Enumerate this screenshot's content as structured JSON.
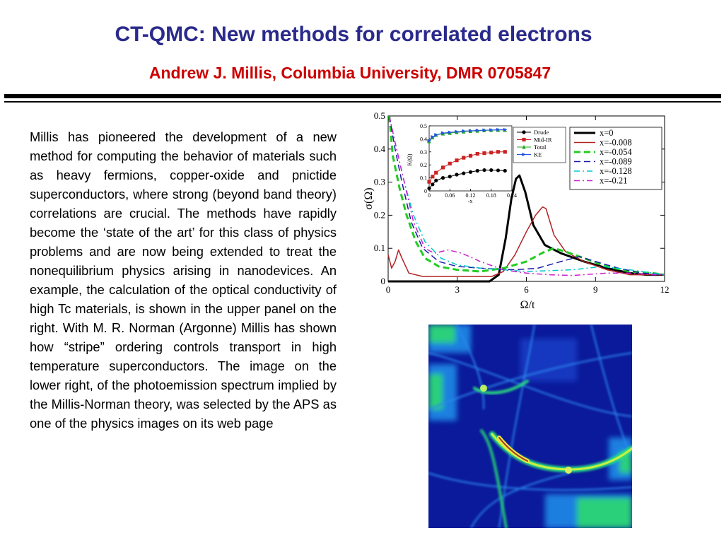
{
  "slide": {
    "title": "CT-QMC: New methods for correlated electrons",
    "subtitle": "Andrew J. Millis, Columbia University, DMR 0705847",
    "body": "Millis has pioneered the development of a new method for computing the behavior of materials such as heavy fermions, copper-oxide and pnictide superconductors, where strong (beyond band theory) correlations are crucial. The methods have rapidly become the ‘state of the art’ for this class of physics problems and are now being extended to treat the nonequilibrium physics arising in nanodevices. An example, the calculation of the optical conductivity of high Tc materials, is shown in the upper panel on the right. With M. R. Norman (Argonne) Millis has shown how “stripe” ordering controls transport in high temperature superconductors. The image on the lower right, of the photoemission spectrum implied by the Millis-Norman theory, was selected by the APS as one of the physics images on its web page"
  },
  "colors": {
    "title": "#2a2a8c",
    "subtitle": "#cc0000"
  },
  "chart_data": [
    {
      "type": "line",
      "xlabel": "Ω/t",
      "ylabel": "σ(Ω)",
      "xlim": [
        0,
        12
      ],
      "ylim": [
        0,
        0.5
      ],
      "xticks": [
        "0",
        "3",
        "6",
        "9",
        "12"
      ],
      "yticks": [
        "0",
        "0.1",
        "0.2",
        "0.3",
        "0.4",
        "0.5"
      ],
      "legend_position": "top-right",
      "series": [
        {
          "name": "x=0",
          "color": "#000000",
          "style": "solid",
          "width": 3,
          "points": [
            [
              0,
              0
            ],
            [
              4.4,
              0
            ],
            [
              4.8,
              0.02
            ],
            [
              5.1,
              0.13
            ],
            [
              5.35,
              0.25
            ],
            [
              5.55,
              0.31
            ],
            [
              5.7,
              0.32
            ],
            [
              5.95,
              0.27
            ],
            [
              6.3,
              0.17
            ],
            [
              6.8,
              0.11
            ],
            [
              7.5,
              0.085
            ],
            [
              8.5,
              0.06
            ],
            [
              9.5,
              0.04
            ],
            [
              10.5,
              0.025
            ],
            [
              11.2,
              0.02
            ],
            [
              12,
              0.02
            ]
          ]
        },
        {
          "name": "x=-0.008",
          "color": "#b22222",
          "style": "solid",
          "width": 1.5,
          "points": [
            [
              0,
              0.08
            ],
            [
              0.15,
              0.04
            ],
            [
              0.3,
              0.06
            ],
            [
              0.45,
              0.095
            ],
            [
              0.6,
              0.07
            ],
            [
              0.9,
              0.025
            ],
            [
              1.5,
              0.015
            ],
            [
              3,
              0.015
            ],
            [
              4.5,
              0.015
            ],
            [
              5,
              0.03
            ],
            [
              5.5,
              0.08
            ],
            [
              6,
              0.15
            ],
            [
              6.4,
              0.2
            ],
            [
              6.7,
              0.225
            ],
            [
              6.85,
              0.22
            ],
            [
              7.2,
              0.14
            ],
            [
              7.7,
              0.09
            ],
            [
              8.5,
              0.06
            ],
            [
              9.5,
              0.035
            ],
            [
              10.5,
              0.02
            ],
            [
              11.5,
              0.02
            ],
            [
              12,
              0.02
            ]
          ]
        },
        {
          "name": "x=-0.054",
          "color": "#22cc22",
          "style": "dashed",
          "width": 3,
          "points": [
            [
              0.05,
              0.5
            ],
            [
              0.2,
              0.38
            ],
            [
              0.5,
              0.28
            ],
            [
              0.8,
              0.2
            ],
            [
              1.2,
              0.12
            ],
            [
              1.6,
              0.07
            ],
            [
              2.2,
              0.045
            ],
            [
              3,
              0.035
            ],
            [
              4,
              0.03
            ],
            [
              5,
              0.04
            ],
            [
              6,
              0.06
            ],
            [
              6.8,
              0.09
            ],
            [
              7.2,
              0.1
            ],
            [
              7.7,
              0.09
            ],
            [
              8.5,
              0.07
            ],
            [
              9.5,
              0.045
            ],
            [
              10.5,
              0.03
            ],
            [
              11.5,
              0.025
            ],
            [
              12,
              0.02
            ]
          ]
        },
        {
          "name": "x=-0.089",
          "color": "#1a1aa8",
          "style": "dashed",
          "width": 1.5,
          "points": [
            [
              0.05,
              0.5
            ],
            [
              0.3,
              0.4
            ],
            [
              0.6,
              0.3
            ],
            [
              1,
              0.18
            ],
            [
              1.5,
              0.1
            ],
            [
              2.2,
              0.06
            ],
            [
              3,
              0.045
            ],
            [
              4,
              0.04
            ],
            [
              5.5,
              0.035
            ],
            [
              6.5,
              0.04
            ],
            [
              7.5,
              0.06
            ],
            [
              8.3,
              0.075
            ],
            [
              9,
              0.06
            ],
            [
              10,
              0.04
            ],
            [
              11,
              0.025
            ],
            [
              12,
              0.02
            ]
          ]
        },
        {
          "name": "x=-0.128",
          "color": "#00c8c8",
          "style": "dashdot",
          "width": 1.5,
          "points": [
            [
              0.05,
              0.5
            ],
            [
              0.3,
              0.42
            ],
            [
              0.7,
              0.3
            ],
            [
              1.1,
              0.2
            ],
            [
              1.6,
              0.12
            ],
            [
              2.3,
              0.07
            ],
            [
              3,
              0.05
            ],
            [
              4,
              0.04
            ],
            [
              6,
              0.03
            ],
            [
              8,
              0.035
            ],
            [
              9.3,
              0.045
            ],
            [
              10.5,
              0.035
            ],
            [
              11.5,
              0.025
            ],
            [
              12,
              0.02
            ]
          ]
        },
        {
          "name": "x=-0.21",
          "color": "#cc22cc",
          "style": "dashdot",
          "width": 1.5,
          "points": [
            [
              0.05,
              0.5
            ],
            [
              0.3,
              0.42
            ],
            [
              0.7,
              0.3
            ],
            [
              1.1,
              0.18
            ],
            [
              1.6,
              0.1
            ],
            [
              2,
              0.085
            ],
            [
              2.6,
              0.095
            ],
            [
              3.2,
              0.085
            ],
            [
              4,
              0.06
            ],
            [
              5,
              0.035
            ],
            [
              6,
              0.025
            ],
            [
              7,
              0.02
            ],
            [
              8,
              0.018
            ],
            [
              9.5,
              0.025
            ],
            [
              10.5,
              0.025
            ],
            [
              11.5,
              0.02
            ],
            [
              12,
              0.02
            ]
          ]
        }
      ],
      "inset": {
        "type": "line",
        "xlabel": "-x",
        "ylabel": "K(Ω)",
        "xlim": [
          0,
          0.24
        ],
        "ylim": [
          0,
          0.5
        ],
        "xticks": [
          "0",
          "0.06",
          "0.12",
          "0.18",
          "0.24"
        ],
        "yticks": [
          "0",
          "0.1",
          "0.2",
          "0.3",
          "0.4",
          "0.5"
        ],
        "series": [
          {
            "name": "Drude",
            "color": "#000000",
            "marker": "circle",
            "x": [
              0,
              0.01,
              0.02,
              0.04,
              0.06,
              0.08,
              0.1,
              0.12,
              0.14,
              0.16,
              0.18,
              0.2,
              0.22
            ],
            "y": [
              0.02,
              0.05,
              0.08,
              0.1,
              0.11,
              0.125,
              0.135,
              0.145,
              0.155,
              0.16,
              0.16,
              0.158,
              0.155
            ]
          },
          {
            "name": "Mid-IR",
            "color": "#cc2222",
            "marker": "square",
            "x": [
              0,
              0.01,
              0.02,
              0.04,
              0.06,
              0.08,
              0.1,
              0.12,
              0.14,
              0.16,
              0.18,
              0.2,
              0.22
            ],
            "y": [
              0.07,
              0.11,
              0.14,
              0.18,
              0.21,
              0.235,
              0.255,
              0.27,
              0.285,
              0.29,
              0.295,
              0.3,
              0.3
            ]
          },
          {
            "name": "Total",
            "color": "#22aa22",
            "marker": "triangle-up",
            "x": [
              0,
              0.01,
              0.02,
              0.04,
              0.06,
              0.08,
              0.1,
              0.12,
              0.14,
              0.16,
              0.18,
              0.2,
              0.22
            ],
            "y": [
              0.38,
              0.41,
              0.43,
              0.44,
              0.445,
              0.45,
              0.455,
              0.46,
              0.462,
              0.465,
              0.467,
              0.468,
              0.468
            ]
          },
          {
            "name": "KE",
            "color": "#2255dd",
            "marker": "triangle-right",
            "x": [
              0,
              0.01,
              0.02,
              0.04,
              0.06,
              0.08,
              0.1,
              0.12,
              0.14,
              0.16,
              0.18,
              0.2,
              0.22
            ],
            "y": [
              0.385,
              0.415,
              0.43,
              0.445,
              0.45,
              0.455,
              0.46,
              0.462,
              0.465,
              0.467,
              0.468,
              0.47,
              0.47
            ]
          }
        ]
      }
    }
  ]
}
